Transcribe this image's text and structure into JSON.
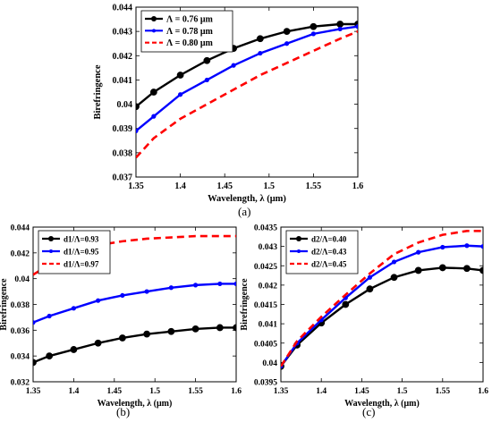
{
  "figure": {
    "captions": [
      "(a)",
      "(b)",
      "(c)"
    ]
  },
  "chart_data": [
    {
      "id": "a",
      "type": "line",
      "title": "",
      "xlabel": "Wavelength, λ (μm)",
      "ylabel": "Birefringence",
      "xlim": [
        1.35,
        1.6
      ],
      "ylim": [
        0.037,
        0.044
      ],
      "xticks": [
        "1.35",
        "1.4",
        "1.45",
        "1.5",
        "1.55",
        "1.6"
      ],
      "yticks": [
        "0.037",
        "0.038",
        "0.039",
        "0.04",
        "0.041",
        "0.042",
        "0.043",
        "0.044"
      ],
      "grid": false,
      "legend": "top-left",
      "series": [
        {
          "name": "Λ = 0.76 μm",
          "color": "#000000",
          "style": "solid-circle",
          "x": [
            1.35,
            1.37,
            1.4,
            1.43,
            1.46,
            1.49,
            1.52,
            1.55,
            1.58,
            1.6
          ],
          "y": [
            0.0399,
            0.0405,
            0.0412,
            0.0418,
            0.0423,
            0.0427,
            0.043,
            0.0432,
            0.0433,
            0.0433
          ]
        },
        {
          "name": "Λ = 0.78 μm",
          "color": "#0000ff",
          "style": "solid-dot",
          "x": [
            1.35,
            1.37,
            1.4,
            1.43,
            1.46,
            1.49,
            1.52,
            1.55,
            1.58,
            1.6
          ],
          "y": [
            0.0389,
            0.0395,
            0.0404,
            0.041,
            0.0416,
            0.0421,
            0.0425,
            0.0429,
            0.0431,
            0.0432
          ]
        },
        {
          "name": "Λ = 0.80 μm",
          "color": "#ff0000",
          "style": "dashed",
          "x": [
            1.35,
            1.37,
            1.4,
            1.43,
            1.46,
            1.49,
            1.52,
            1.55,
            1.58,
            1.6
          ],
          "y": [
            0.0378,
            0.0386,
            0.0394,
            0.04,
            0.0406,
            0.0412,
            0.0417,
            0.0422,
            0.0427,
            0.043
          ]
        }
      ]
    },
    {
      "id": "b",
      "type": "line",
      "title": "",
      "xlabel": "Wavelength, λ (μm)",
      "ylabel": "Birefringence",
      "xlim": [
        1.35,
        1.6
      ],
      "ylim": [
        0.032,
        0.044
      ],
      "xticks": [
        "1.35",
        "1.4",
        "1.45",
        "1.5",
        "1.55",
        "1.6"
      ],
      "yticks": [
        "0.032",
        "0.034",
        "0.036",
        "0.038",
        "0.04",
        "0.042",
        "0.044"
      ],
      "grid": false,
      "legend": "top-left",
      "series": [
        {
          "name": "d1/Λ=0.93",
          "color": "#000000",
          "style": "solid-circle",
          "x": [
            1.35,
            1.37,
            1.4,
            1.43,
            1.46,
            1.49,
            1.52,
            1.55,
            1.58,
            1.6
          ],
          "y": [
            0.0335,
            0.034,
            0.0345,
            0.035,
            0.0354,
            0.0357,
            0.0359,
            0.0361,
            0.0362,
            0.0362
          ]
        },
        {
          "name": "d1/Λ=0.95",
          "color": "#0000ff",
          "style": "solid-dot",
          "x": [
            1.35,
            1.37,
            1.4,
            1.43,
            1.46,
            1.49,
            1.52,
            1.55,
            1.58,
            1.6
          ],
          "y": [
            0.0366,
            0.0371,
            0.0377,
            0.0383,
            0.0387,
            0.039,
            0.0393,
            0.0395,
            0.0396,
            0.0396
          ]
        },
        {
          "name": "d1/Λ=0.97",
          "color": "#ff0000",
          "style": "dashed",
          "x": [
            1.35,
            1.37,
            1.4,
            1.43,
            1.46,
            1.49,
            1.52,
            1.55,
            1.58,
            1.6
          ],
          "y": [
            0.0403,
            0.0411,
            0.042,
            0.0426,
            0.0429,
            0.0431,
            0.0432,
            0.0433,
            0.0433,
            0.0433
          ]
        }
      ]
    },
    {
      "id": "c",
      "type": "line",
      "title": "",
      "xlabel": "Wavelength, λ (μm)",
      "ylabel": "Birefringence",
      "xlim": [
        1.35,
        1.6
      ],
      "ylim": [
        0.0395,
        0.0435
      ],
      "xticks": [
        "1.35",
        "1.4",
        "1.45",
        "1.5",
        "1.55",
        "1.6"
      ],
      "yticks": [
        "0.0395",
        "0.04",
        "0.0405",
        "0.041",
        "0.0415",
        "0.042",
        "0.0425",
        "0.043",
        "0.0435"
      ],
      "grid": false,
      "legend": "top-left",
      "series": [
        {
          "name": "d2/Λ=0.40",
          "color": "#000000",
          "style": "solid-circle",
          "x": [
            1.35,
            1.37,
            1.4,
            1.43,
            1.46,
            1.49,
            1.52,
            1.55,
            1.58,
            1.6
          ],
          "y": [
            0.0399,
            0.04045,
            0.04102,
            0.0415,
            0.0419,
            0.0422,
            0.04238,
            0.04245,
            0.04243,
            0.04238
          ]
        },
        {
          "name": "d2/Λ=0.43",
          "color": "#0000ff",
          "style": "solid-dot",
          "x": [
            1.35,
            1.37,
            1.4,
            1.43,
            1.46,
            1.49,
            1.52,
            1.55,
            1.58,
            1.6
          ],
          "y": [
            0.0399,
            0.0405,
            0.0411,
            0.04167,
            0.0422,
            0.0426,
            0.04285,
            0.04298,
            0.04302,
            0.043
          ]
        },
        {
          "name": "d2/Λ=0.45",
          "color": "#ff0000",
          "style": "dashed",
          "x": [
            1.35,
            1.37,
            1.4,
            1.43,
            1.46,
            1.49,
            1.52,
            1.55,
            1.58,
            1.6
          ],
          "y": [
            0.0399,
            0.04055,
            0.04118,
            0.04175,
            0.0423,
            0.0428,
            0.0431,
            0.0433,
            0.0434,
            0.0434
          ]
        }
      ]
    }
  ]
}
